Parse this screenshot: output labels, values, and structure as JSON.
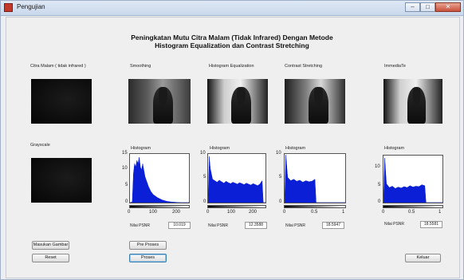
{
  "window": {
    "title": "Pengujian",
    "controls": {
      "minimize": "–",
      "maximize": "□",
      "close": "✕"
    }
  },
  "heading": {
    "line1": "Peningkatan Mutu Citra Malam (Tidak Infrared) Dengan Metode",
    "line2": "Histogram Equalization dan Contrast Stretching"
  },
  "panels": {
    "original": "Citra Malam ( tidak infrared )",
    "smoothing": "Smoothing",
    "hist_eq": "Histogram Equalization",
    "contrast": "Contrast Stretching",
    "immediate": "ImmediaTe",
    "grayscale": "Grayscale"
  },
  "histograms": [
    {
      "title": "Histogram",
      "yticks": [
        "15",
        "10",
        "5",
        "0"
      ],
      "xticks": [
        "0",
        "100",
        "200"
      ],
      "psnr_label": "Nilai PSNR",
      "psnr_value": "10.019"
    },
    {
      "title": "Histogram",
      "yticks": [
        "10",
        "5",
        "0"
      ],
      "xticks": [
        "0",
        "100",
        "200"
      ],
      "psnr_label": "Nilai PSNR",
      "psnr_value": "12.3588"
    },
    {
      "title": "Histogram",
      "yticks": [
        "10",
        "5",
        "0"
      ],
      "xticks": [
        "0",
        "0.5",
        "1"
      ],
      "psnr_label": "Nilai PSNR",
      "psnr_value": "18.5947"
    },
    {
      "title": "Histogram",
      "yticks": [
        "10",
        "5",
        "0"
      ],
      "xticks": [
        "0",
        "0.5",
        "1"
      ],
      "psnr_label": "Nilai PSNR",
      "psnr_value": "18.5581"
    }
  ],
  "buttons": {
    "load": "Masukan Gambar",
    "reset": "Reset",
    "preprocess": "Pre Proses",
    "process": "Proses",
    "exit": "Keluar"
  },
  "colors": {
    "hist_fill": "#0a1fd6",
    "accent": "#3c7fb1"
  },
  "chart_data": [
    {
      "type": "area",
      "title": "Histogram",
      "xlim": [
        0,
        255
      ],
      "ylim": [
        0,
        15
      ],
      "x": [
        0,
        10,
        15,
        20,
        25,
        30,
        35,
        40,
        45,
        50,
        55,
        60,
        65,
        70,
        75,
        80,
        90,
        100,
        120,
        140,
        160,
        180,
        200,
        220,
        255
      ],
      "values": [
        0,
        0.2,
        9,
        12,
        11,
        13,
        12,
        14,
        11,
        10,
        12,
        10,
        8,
        7,
        6,
        5,
        3.5,
        2.5,
        1.5,
        0.8,
        0.4,
        0.2,
        0.1,
        0,
        0
      ]
    },
    {
      "type": "area",
      "title": "Histogram",
      "xlim": [
        0,
        255
      ],
      "ylim": [
        0,
        10
      ],
      "x": [
        0,
        5,
        10,
        20,
        30,
        40,
        50,
        60,
        70,
        80,
        90,
        100,
        110,
        120,
        130,
        140,
        150,
        160,
        170,
        180,
        190,
        200,
        210,
        220,
        230,
        240,
        245,
        255
      ],
      "values": [
        0,
        9.5,
        7,
        4.8,
        4.5,
        4.2,
        4.6,
        4.3,
        4,
        4.4,
        4.1,
        3.9,
        4.2,
        4,
        3.8,
        4.1,
        3.9,
        3.7,
        4,
        3.8,
        3.6,
        3.9,
        3.7,
        3.5,
        3.8,
        4.5,
        0,
        0
      ]
    },
    {
      "type": "area",
      "title": "Histogram",
      "xlim": [
        0,
        1
      ],
      "ylim": [
        0,
        10
      ],
      "x": [
        0,
        0.02,
        0.05,
        0.1,
        0.15,
        0.2,
        0.25,
        0.3,
        0.35,
        0.4,
        0.45,
        0.5,
        0.52,
        0.55,
        1
      ],
      "values": [
        0,
        9.8,
        5.2,
        4.5,
        4.8,
        4.4,
        4.6,
        4.2,
        4.5,
        4.3,
        4.4,
        4.8,
        0,
        0,
        0
      ]
    },
    {
      "type": "area",
      "title": "Histogram",
      "xlim": [
        0,
        1
      ],
      "ylim": [
        0,
        10
      ],
      "x": [
        0,
        0.02,
        0.05,
        0.1,
        0.15,
        0.2,
        0.25,
        0.3,
        0.35,
        0.4,
        0.45,
        0.5,
        0.55,
        0.6,
        0.65,
        0.7,
        0.72,
        0.75,
        1
      ],
      "values": [
        0,
        9.5,
        4,
        3.2,
        3.5,
        3,
        3.3,
        3.1,
        3.4,
        3.2,
        3.6,
        3.3,
        3.5,
        3.4,
        3.8,
        3.6,
        0,
        0,
        0
      ]
    }
  ]
}
